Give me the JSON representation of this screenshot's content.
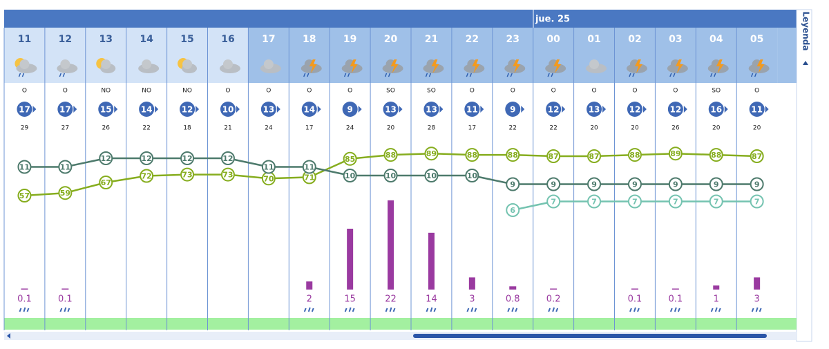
{
  "header": {
    "day": "jue. 25",
    "legend": "Leyenda"
  },
  "hours": [
    "11",
    "12",
    "13",
    "14",
    "15",
    "16",
    "17",
    "18",
    "19",
    "20",
    "21",
    "22",
    "23",
    "00",
    "01",
    "02",
    "03",
    "04",
    "05"
  ],
  "wind_dir": [
    "O",
    "O",
    "NO",
    "NO",
    "NO",
    "O",
    "O",
    "O",
    "O",
    "SO",
    "SO",
    "O",
    "O",
    "O",
    "O",
    "O",
    "O",
    "SO",
    "O"
  ],
  "wind_speed": [
    17,
    17,
    15,
    14,
    12,
    10,
    13,
    14,
    9,
    13,
    13,
    11,
    9,
    12,
    13,
    12,
    12,
    16,
    11
  ],
  "gusts": [
    29,
    27,
    26,
    22,
    18,
    21,
    24,
    17,
    24,
    20,
    28,
    17,
    22,
    22,
    20,
    20,
    26,
    20,
    20
  ],
  "temperature": [
    11,
    11,
    12,
    12,
    12,
    12,
    11,
    11,
    10,
    10,
    10,
    10,
    9,
    9,
    9,
    9,
    9,
    9,
    9
  ],
  "feels_like": [
    null,
    null,
    null,
    null,
    null,
    null,
    null,
    null,
    null,
    null,
    null,
    null,
    6,
    7,
    7,
    7,
    7,
    7,
    7
  ],
  "humidity": [
    57,
    59,
    67,
    72,
    73,
    73,
    70,
    71,
    85,
    88,
    89,
    88,
    88,
    87,
    87,
    88,
    89,
    88,
    87
  ],
  "precipitation": [
    0.1,
    0.1,
    null,
    null,
    null,
    null,
    null,
    2,
    15,
    22,
    14,
    3,
    0.8,
    0.2,
    null,
    0.1,
    0.1,
    1,
    3
  ]
}
